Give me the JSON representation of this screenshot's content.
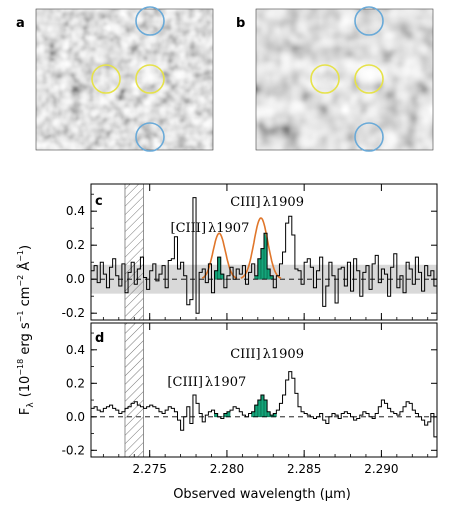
{
  "chart_data": [
    {
      "panel": "a",
      "type": "image",
      "circles": [
        {
          "color": "#e6e24a",
          "role": "source"
        },
        {
          "color": "#e6e24a",
          "role": "source"
        },
        {
          "color": "#6aaad8",
          "role": "reference"
        },
        {
          "color": "#6aaad8",
          "role": "reference"
        }
      ]
    },
    {
      "panel": "b",
      "type": "image",
      "circles": [
        {
          "color": "#e6e24a",
          "role": "source"
        },
        {
          "color": "#e6e24a",
          "role": "source"
        },
        {
          "color": "#6aaad8",
          "role": "reference"
        },
        {
          "color": "#6aaad8",
          "role": "reference"
        }
      ]
    },
    {
      "panel": "c",
      "type": "line",
      "xlim": [
        2.2712,
        2.2936
      ],
      "ylim": [
        -0.24,
        0.56
      ],
      "yticks": [
        -0.2,
        0.0,
        0.2,
        0.4
      ],
      "ytick_labels": [
        "-0.2",
        "0.0",
        "0.2",
        "0.4"
      ],
      "step": 0.0002,
      "x_start": 2.2712,
      "flux": [
        0.05,
        0.08,
        -0.02,
        0.1,
        0.03,
        -0.05,
        0.07,
        0.12,
        0.02,
        -0.04,
        0.09,
        -0.08,
        0.04,
        0.1,
        -0.03,
        0.06,
        0.13,
        0.01,
        -0.06,
        0.05,
        0.09,
        -0.01,
        0.03,
        0.08,
        -0.05,
        0.11,
        0.12,
        0.25,
        0.06,
        0.1,
        0.02,
        -0.15,
        -0.12,
        0.48,
        -0.2,
        0.04,
        0.06,
        -0.02,
        0.09,
        -0.08,
        0.05,
        0.13,
        0.03,
        -0.05,
        0.02,
        0.07,
        0.0,
        0.06,
        0.03,
        0.08,
        -0.03,
        0.04,
        0.09,
        0.02,
        0.12,
        0.18,
        0.27,
        0.06,
        0.02,
        -0.05,
        0.02,
        0.09,
        0.16,
        0.33,
        0.37,
        0.26,
        0.06,
        0.05,
        -0.03,
        0.1,
        0.12,
        0.07,
        -0.05,
        0.05,
        0.13,
        -0.16,
        -0.04,
        0.1,
        0.02,
        -0.14,
        0.06,
        0.07,
        -0.04,
        0.1,
        -0.07,
        0.12,
        0.05,
        -0.1,
        0.04,
        0.08,
        -0.06,
        0.09,
        0.14,
        -0.02,
        0.06,
        0.03,
        -0.1,
        0.07,
        0.15,
        -0.05,
        0.02,
        -0.08,
        0.1,
        0.06,
        -0.03,
        0.13,
        0.04,
        -0.07,
        0.08,
        0.02,
        0.05,
        -0.04
      ],
      "noise_sigma": 0.085,
      "fit_color": "#e0762a",
      "fill_color": "#14a57a",
      "zero_line": 0.0,
      "excluded_region": [
        2.2734,
        2.2746
      ],
      "lines": [
        {
          "label_bracket": "[CIII]",
          "label_lambda": "λ1907",
          "center": 2.2795,
          "amplitude": 0.27,
          "sigma": 0.0004,
          "fill_range": [
            2.2792,
            2.2798
          ]
        },
        {
          "label_bracket": "CIII]",
          "label_lambda": "λ1909",
          "center": 2.2822,
          "amplitude": 0.36,
          "sigma": 0.00045,
          "fill_range": [
            2.2818,
            2.2828
          ]
        }
      ]
    },
    {
      "panel": "d",
      "type": "line",
      "xlim": [
        2.2712,
        2.2936
      ],
      "ylim": [
        -0.24,
        0.56
      ],
      "yticks": [
        -0.2,
        0.0,
        0.2,
        0.4
      ],
      "ytick_labels": [
        "-0.2",
        "0.0",
        "0.2",
        "0.4"
      ],
      "xticks": [
        2.275,
        2.28,
        2.285,
        2.29
      ],
      "xtick_labels": [
        "2.275",
        "2.280",
        "2.285",
        "2.290"
      ],
      "step": 0.0002,
      "x_start": 2.2712,
      "flux": [
        0.05,
        0.06,
        0.04,
        0.03,
        0.05,
        0.06,
        0.07,
        0.05,
        0.04,
        0.02,
        0.03,
        0.05,
        0.06,
        0.08,
        0.09,
        0.07,
        0.06,
        0.05,
        0.06,
        0.07,
        0.06,
        0.05,
        0.03,
        0.02,
        0.04,
        0.06,
        0.05,
        0.03,
        -0.02,
        -0.08,
        0.0,
        0.06,
        -0.04,
        0.13,
        0.08,
        0.02,
        -0.03,
        0.01,
        0.03,
        0.04,
        0.02,
        0.0,
        -0.01,
        0.02,
        0.03,
        0.04,
        0.06,
        0.05,
        0.03,
        0.01,
        0.0,
        0.02,
        0.03,
        0.07,
        0.1,
        0.13,
        0.1,
        0.03,
        0.01,
        0.02,
        0.04,
        0.08,
        0.13,
        0.22,
        0.27,
        0.23,
        0.14,
        0.06,
        0.03,
        0.02,
        0.01,
        0.0,
        -0.01,
        0.0,
        0.02,
        -0.02,
        -0.04,
        0.0,
        0.02,
        0.01,
        -0.01,
        0.02,
        0.03,
        0.02,
        0.0,
        -0.02,
        -0.01,
        0.01,
        0.03,
        0.02,
        0.0,
        -0.01,
        0.02,
        0.06,
        0.1,
        0.08,
        0.05,
        0.03,
        0.02,
        0.01,
        0.03,
        0.06,
        0.09,
        0.08,
        0.04,
        0.02,
        0.0,
        -0.02,
        -0.05,
        -0.03,
        0.02,
        -0.12
      ],
      "fill_color": "#14a57a",
      "zero_line": 0.0,
      "excluded_region": [
        2.2734,
        2.2746
      ],
      "lines": [
        {
          "label_bracket": "[CIII]",
          "label_lambda": "λ1907",
          "center": 2.2795,
          "fill_range": [
            2.2792,
            2.28
          ]
        },
        {
          "label_bracket": "CIII]",
          "label_lambda": "λ1909",
          "center": 2.2822,
          "fill_range": [
            2.2816,
            2.283
          ]
        }
      ]
    }
  ],
  "labels": {
    "panel_a": "a",
    "panel_b": "b",
    "panel_c": "c",
    "panel_d": "d",
    "xlabel": "Observed wavelength (μm)",
    "ylabel_flux": "F",
    "ylabel_sub": "λ",
    "ylabel_unit": "(10",
    "ylabel_exp1": "−18",
    "ylabel_mid1": " erg s",
    "ylabel_exp2": "−1",
    "ylabel_mid2": " cm",
    "ylabel_exp3": "−2",
    "ylabel_mid3": " Å",
    "ylabel_exp4": "−1",
    "ylabel_end": ")"
  }
}
